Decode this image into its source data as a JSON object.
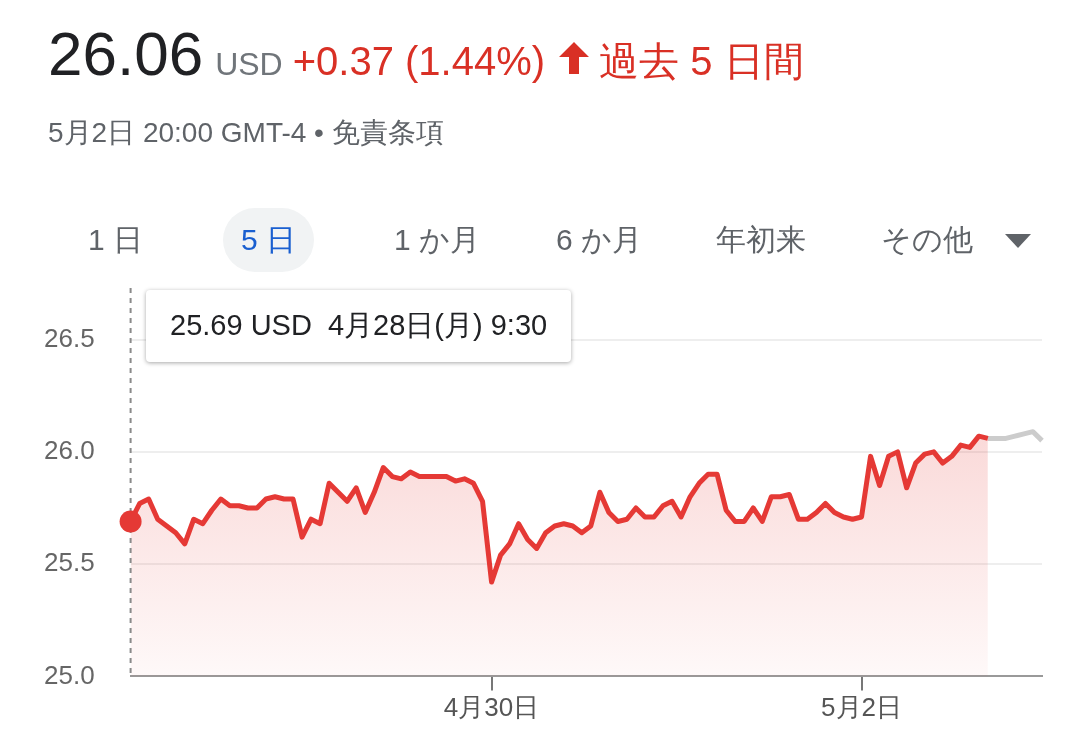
{
  "chart_data": {
    "type": "area",
    "title": "26.06",
    "subtitle": "5月2日 20:00 GMT-4 • 免責条項",
    "annotations": [
      "USD",
      "+0.37 (1.44%)",
      "過去 5 日間",
      "1 日",
      "5 日",
      "1 か月",
      "6 か月",
      "年初来",
      "その他",
      "25.69 USD  4月28日(月) 9:30"
    ],
    "categories": [
      null,
      null,
      null,
      null,
      null,
      null,
      null,
      null,
      null,
      null,
      null,
      null,
      null,
      null,
      null,
      null,
      null,
      null,
      null,
      null,
      null,
      null,
      null,
      null,
      null,
      null,
      null,
      null,
      null,
      null,
      null,
      null,
      null,
      null,
      null,
      null,
      null,
      null,
      null,
      null,
      "4月30日",
      null,
      null,
      null,
      null,
      null,
      null,
      null,
      null,
      null,
      null,
      null,
      null,
      null,
      null,
      null,
      null,
      null,
      null,
      null,
      null,
      null,
      null,
      null,
      null,
      null,
      null,
      null,
      null,
      null,
      null,
      null,
      null,
      null,
      null,
      null,
      null,
      null,
      null,
      null,
      null,
      "5月2日",
      null,
      null,
      null,
      null,
      null,
      null,
      null,
      null,
      null,
      null,
      null,
      null,
      null,
      null,
      null,
      null,
      null,
      null,
      null,
      null
    ],
    "series": [
      {
        "color": "#e53935",
        "values": [
          25.69,
          25.77,
          25.79,
          25.7,
          25.67,
          25.64,
          25.59,
          25.7,
          25.68,
          25.74,
          25.79,
          25.76,
          25.76,
          25.75,
          25.75,
          25.79,
          25.8,
          25.79,
          25.79,
          25.62,
          25.7,
          25.68,
          25.86,
          25.82,
          25.78,
          25.84,
          25.73,
          25.82,
          25.93,
          25.89,
          25.88,
          25.91,
          25.89,
          25.89,
          25.89,
          25.89,
          25.87,
          25.88,
          25.86,
          25.78,
          25.42,
          25.54,
          25.59,
          25.68,
          25.61,
          25.57,
          25.64,
          25.67,
          25.68,
          25.67,
          25.64,
          25.67,
          25.82,
          25.73,
          25.69,
          25.7,
          25.75,
          25.71,
          25.71,
          25.76,
          25.78,
          25.71,
          25.8,
          25.86,
          25.9,
          25.9,
          25.74,
          25.69,
          25.69,
          25.75,
          25.69,
          25.8,
          25.8,
          25.81,
          25.7,
          25.7,
          25.73,
          25.77,
          25.73,
          25.71,
          25.7,
          25.71,
          25.98,
          25.85,
          25.98,
          26.0,
          25.84,
          25.95,
          25.99,
          26.0,
          25.95,
          25.98,
          26.03,
          26.02,
          26.07,
          26.06,
          null,
          null,
          null,
          null,
          null,
          null
        ]
      },
      {
        "type": "line",
        "color": "#cccccc",
        "values": [
          null,
          null,
          null,
          null,
          null,
          null,
          null,
          null,
          null,
          null,
          null,
          null,
          null,
          null,
          null,
          null,
          null,
          null,
          null,
          null,
          null,
          null,
          null,
          null,
          null,
          null,
          null,
          null,
          null,
          null,
          null,
          null,
          null,
          null,
          null,
          null,
          null,
          null,
          null,
          null,
          null,
          null,
          null,
          null,
          null,
          null,
          null,
          null,
          null,
          null,
          null,
          null,
          null,
          null,
          null,
          null,
          null,
          null,
          null,
          null,
          null,
          null,
          null,
          null,
          null,
          null,
          null,
          null,
          null,
          null,
          null,
          null,
          null,
          null,
          null,
          null,
          null,
          null,
          null,
          null,
          null,
          null,
          null,
          null,
          null,
          null,
          null,
          null,
          null,
          null,
          null,
          null,
          null,
          null,
          null,
          26.06,
          26.06,
          26.06,
          26.07,
          26.08,
          26.09,
          26.05
        ]
      }
    ],
    "ylim": [
      25.0,
      26.5
    ],
    "yticks": [
      {
        "value": 25.0,
        "label": "25.0"
      },
      {
        "value": 25.5,
        "label": "25.5"
      },
      {
        "value": 26.0,
        "label": "26.0"
      },
      {
        "value": 26.5,
        "label": "26.5"
      }
    ],
    "grid": "y",
    "legend": false
  }
}
